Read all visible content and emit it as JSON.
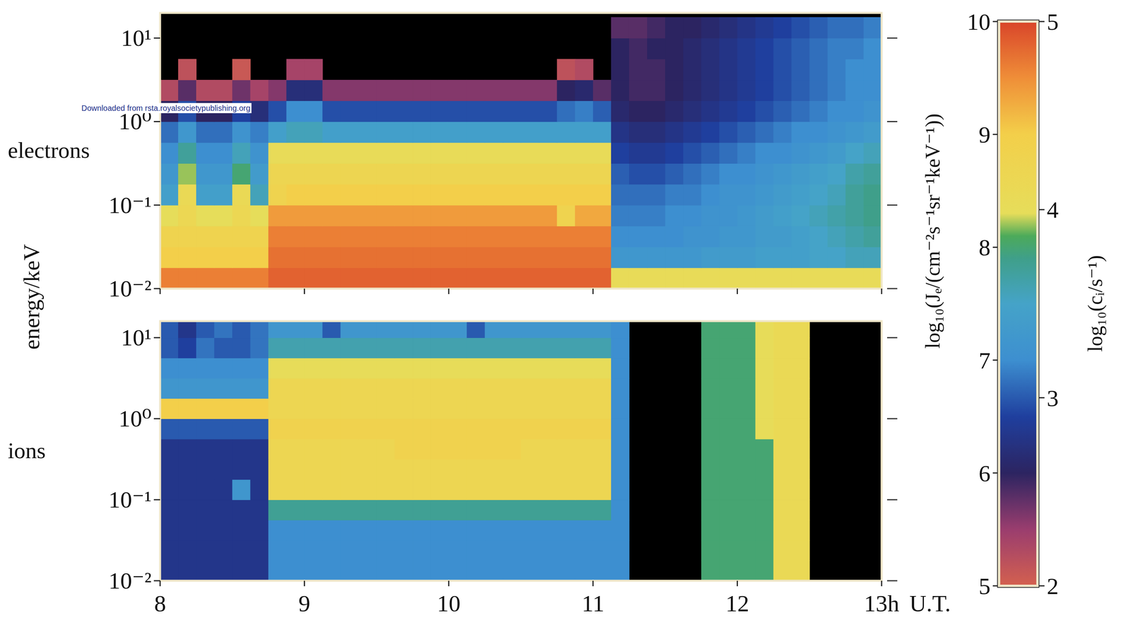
{
  "chart_data": [
    {
      "type": "heatmap",
      "title": "electrons",
      "ylabel": "energy/keV",
      "log": "y",
      "tick_labels": "y",
      "annotations": [
        "Downloaded from rsta.royalsocietypublishing.org"
      ],
      "xlim": [
        8,
        13
      ],
      "xticks": [
        8,
        9,
        10,
        11,
        12,
        {
          "value": 13,
          "label": "13h"
        }
      ],
      "ylim": [
        0.01,
        20
      ],
      "yticks": [
        {
          "value": 0.01,
          "label": "10⁻²"
        },
        {
          "value": 0.1,
          "label": "10⁻¹"
        },
        {
          "value": 1,
          "label": "10⁰"
        },
        {
          "value": 10,
          "label": "10¹"
        }
      ],
      "x": [
        8,
        8.125,
        8.25,
        8.375,
        8.5,
        8.625,
        8.75,
        8.875,
        9,
        9.125,
        9.25,
        9.375,
        9.5,
        9.625,
        9.75,
        9.875,
        10,
        10.125,
        10.25,
        10.375,
        10.5,
        10.625,
        10.75,
        10.875,
        11,
        11.125,
        11.25,
        11.375,
        11.5,
        11.625,
        11.75,
        11.875,
        12,
        12.125,
        12.25,
        12.375,
        12.5,
        12.625,
        12.75,
        12.875,
        13
      ],
      "y": [
        0.01,
        0.0178,
        0.0316,
        0.0562,
        0.1,
        0.178,
        0.316,
        0.562,
        1,
        1.78,
        3.16,
        5.62,
        10,
        17.8
      ],
      "zlim": [
        5,
        10
      ],
      "zticks": [
        5,
        6,
        7,
        8,
        9,
        10
      ],
      "zlabel": "log₁₀(Jₑ/(cm⁻²s⁻¹sr⁻¹keV⁻¹))",
      "z": [
        [
          9.6,
          9.6,
          9.6,
          9.6,
          9.6,
          9.6,
          9.8,
          9.8,
          9.8,
          9.8,
          9.8,
          9.8,
          9.8,
          9.8,
          9.8,
          9.8,
          9.8,
          9.8,
          9.8,
          9.8,
          9.8,
          9.8,
          9.8,
          9.8,
          9.8,
          8.4,
          8.4,
          8.4,
          8.4,
          8.4,
          8.4,
          8.4,
          8.4,
          8.4,
          8.4,
          8.4,
          8.4,
          8.4,
          8.4,
          8.4
        ],
        [
          9.0,
          9.0,
          9.0,
          9.0,
          9.0,
          9.0,
          9.7,
          9.7,
          9.7,
          9.7,
          9.7,
          9.7,
          9.7,
          9.7,
          9.7,
          9.7,
          9.7,
          9.7,
          9.7,
          9.7,
          9.7,
          9.7,
          9.7,
          9.7,
          9.7,
          7.2,
          7.2,
          7.2,
          7.2,
          7.2,
          7.3,
          7.3,
          7.3,
          7.4,
          7.4,
          7.4,
          7.5,
          7.5,
          7.6,
          7.6
        ],
        [
          8.8,
          8.8,
          8.8,
          8.8,
          8.8,
          8.8,
          9.6,
          9.6,
          9.6,
          9.6,
          9.6,
          9.6,
          9.6,
          9.6,
          9.6,
          9.6,
          9.6,
          9.6,
          9.6,
          9.6,
          9.6,
          9.6,
          9.6,
          9.6,
          9.6,
          7.0,
          7.0,
          7.0,
          7.0,
          7.1,
          7.1,
          7.2,
          7.2,
          7.3,
          7.3,
          7.4,
          7.5,
          7.6,
          7.7,
          7.8
        ],
        [
          8.3,
          8.6,
          8.3,
          8.3,
          8.6,
          8.3,
          9.4,
          9.4,
          9.4,
          9.4,
          9.4,
          9.4,
          9.4,
          9.4,
          9.4,
          9.4,
          9.4,
          9.4,
          9.4,
          9.4,
          9.4,
          9.4,
          8.8,
          9.3,
          9.3,
          6.9,
          6.9,
          6.9,
          7.0,
          7.0,
          7.1,
          7.1,
          7.2,
          7.3,
          7.4,
          7.5,
          7.6,
          7.7,
          7.8,
          7.9
        ],
        [
          7.4,
          8.5,
          7.4,
          7.4,
          8.5,
          7.6,
          8.8,
          9.0,
          9.0,
          9.0,
          9.0,
          9.0,
          9.0,
          9.0,
          9.0,
          9.0,
          9.0,
          9.0,
          9.0,
          9.0,
          9.0,
          9.0,
          9.0,
          9.0,
          9.0,
          6.8,
          6.8,
          6.8,
          6.9,
          6.9,
          7.0,
          7.1,
          7.1,
          7.2,
          7.3,
          7.4,
          7.5,
          7.6,
          7.8,
          7.9
        ],
        [
          7.2,
          8.2,
          7.2,
          7.2,
          8.0,
          7.3,
          8.7,
          8.7,
          8.7,
          8.7,
          8.7,
          8.7,
          8.7,
          8.7,
          8.7,
          8.7,
          8.7,
          8.7,
          8.7,
          8.7,
          8.7,
          8.7,
          8.7,
          8.7,
          8.7,
          6.7,
          6.6,
          6.6,
          6.7,
          6.8,
          6.9,
          7.0,
          7.0,
          7.1,
          7.2,
          7.3,
          7.4,
          7.5,
          7.7,
          7.8
        ],
        [
          7.0,
          7.8,
          7.0,
          7.0,
          7.6,
          7.1,
          8.4,
          8.4,
          8.4,
          8.4,
          8.4,
          8.4,
          8.4,
          8.4,
          8.4,
          8.4,
          8.4,
          8.4,
          8.4,
          8.4,
          8.4,
          8.4,
          8.4,
          8.4,
          8.4,
          6.5,
          6.4,
          6.4,
          6.5,
          6.6,
          6.7,
          6.8,
          6.9,
          7.0,
          7.0,
          7.1,
          7.2,
          7.3,
          7.5,
          7.6
        ],
        [
          6.8,
          7.2,
          6.8,
          6.8,
          7.1,
          6.9,
          7.4,
          7.6,
          7.6,
          7.4,
          7.4,
          7.4,
          7.4,
          7.4,
          7.4,
          7.4,
          7.4,
          7.4,
          7.4,
          7.4,
          7.4,
          7.4,
          7.4,
          7.4,
          7.4,
          6.3,
          6.2,
          6.2,
          6.3,
          6.4,
          6.5,
          6.6,
          6.7,
          6.8,
          6.9,
          7.0,
          7.0,
          7.1,
          7.2,
          7.3
        ],
        [
          6.0,
          6.6,
          6.0,
          6.0,
          6.5,
          6.2,
          6.6,
          7.0,
          7.0,
          6.6,
          6.6,
          6.6,
          6.6,
          6.6,
          6.6,
          6.6,
          6.6,
          6.6,
          6.6,
          6.6,
          6.6,
          6.6,
          6.8,
          6.9,
          6.7,
          6.1,
          6.0,
          6.0,
          6.1,
          6.2,
          6.3,
          6.4,
          6.5,
          6.6,
          6.7,
          6.8,
          6.9,
          7.0,
          7.0,
          7.1
        ],
        [
          5.3,
          5.8,
          5.3,
          5.3,
          5.7,
          5.4,
          5.6,
          6.2,
          6.2,
          5.6,
          5.6,
          5.6,
          5.6,
          5.6,
          5.6,
          5.6,
          5.6,
          5.6,
          5.6,
          5.6,
          5.6,
          5.6,
          6.0,
          6.1,
          5.8,
          6.0,
          5.9,
          5.9,
          6.0,
          6.1,
          6.2,
          6.3,
          6.4,
          6.5,
          6.6,
          6.7,
          6.8,
          6.9,
          7.0,
          7.0
        ],
        [
          null,
          5.2,
          null,
          null,
          5.1,
          null,
          null,
          5.4,
          5.4,
          null,
          null,
          null,
          null,
          null,
          null,
          null,
          null,
          null,
          null,
          null,
          null,
          null,
          5.2,
          5.3,
          null,
          6.0,
          5.9,
          5.9,
          6.0,
          6.1,
          6.2,
          6.3,
          6.4,
          6.5,
          6.6,
          6.7,
          6.8,
          6.9,
          7.0,
          7.0
        ],
        [
          null,
          null,
          null,
          null,
          null,
          null,
          null,
          null,
          null,
          null,
          null,
          null,
          null,
          null,
          null,
          null,
          null,
          null,
          null,
          null,
          null,
          null,
          null,
          null,
          null,
          6.0,
          5.9,
          6.0,
          6.0,
          6.1,
          6.2,
          6.3,
          6.4,
          6.5,
          6.6,
          6.7,
          6.8,
          6.9,
          6.9,
          7.0
        ],
        [
          null,
          null,
          null,
          null,
          null,
          null,
          null,
          null,
          null,
          null,
          null,
          null,
          null,
          null,
          null,
          null,
          null,
          null,
          null,
          null,
          null,
          null,
          null,
          null,
          null,
          5.8,
          5.8,
          5.9,
          6.0,
          6.0,
          6.1,
          6.2,
          6.3,
          6.4,
          6.5,
          6.6,
          6.7,
          6.8,
          6.8,
          6.9
        ]
      ]
    },
    {
      "type": "heatmap",
      "title": "ions",
      "xlabel": "U.T.",
      "log": "y",
      "tick_labels": true,
      "xlim": [
        8,
        13
      ],
      "xticks": [
        8,
        9,
        10,
        11,
        12,
        {
          "value": 13,
          "label": "13h"
        }
      ],
      "ylim": [
        0.01,
        16
      ],
      "yticks": [
        {
          "value": 0.01,
          "label": "10⁻²"
        },
        {
          "value": 0.1,
          "label": "10⁻¹"
        },
        {
          "value": 1,
          "label": "10⁰"
        },
        {
          "value": 10,
          "label": "10¹"
        }
      ],
      "x": [
        8,
        8.125,
        8.25,
        8.375,
        8.5,
        8.625,
        8.75,
        8.875,
        9,
        9.125,
        9.25,
        9.375,
        9.5,
        9.625,
        9.75,
        9.875,
        10,
        10.125,
        10.25,
        10.375,
        10.5,
        10.625,
        10.75,
        10.875,
        11,
        11.125,
        11.25,
        11.375,
        11.5,
        11.625,
        11.75,
        11.875,
        12,
        12.125,
        12.25,
        12.375,
        12.5,
        12.625,
        12.75,
        12.875,
        13
      ],
      "y": [
        0.01,
        0.0178,
        0.0316,
        0.0562,
        0.1,
        0.178,
        0.316,
        0.562,
        1,
        1.78,
        3.16,
        5.62,
        10,
        17.8
      ],
      "zlim": [
        2,
        5
      ],
      "zticks": [
        2,
        3,
        4,
        5
      ],
      "zlabel": "log₁₀(cᵢ/s⁻¹)",
      "z": [
        [
          2.8,
          2.8,
          2.8,
          2.8,
          2.8,
          2.8,
          3.2,
          3.2,
          3.2,
          3.2,
          3.2,
          3.2,
          3.2,
          3.2,
          3.2,
          3.2,
          3.2,
          3.2,
          3.2,
          3.2,
          3.2,
          3.2,
          3.2,
          3.2,
          3.2,
          3.2,
          null,
          null,
          null,
          null,
          3.8,
          3.8,
          3.8,
          3.8,
          4.1,
          4.1,
          null,
          null,
          null,
          null
        ],
        [
          2.8,
          2.8,
          2.8,
          2.8,
          2.8,
          2.8,
          3.2,
          3.2,
          3.2,
          3.2,
          3.2,
          3.2,
          3.2,
          3.2,
          3.2,
          3.2,
          3.2,
          3.2,
          3.2,
          3.2,
          3.2,
          3.2,
          3.2,
          3.2,
          3.2,
          3.2,
          null,
          null,
          null,
          null,
          3.8,
          3.8,
          3.8,
          3.8,
          4.1,
          4.1,
          null,
          null,
          null,
          null
        ],
        [
          2.8,
          2.8,
          2.8,
          2.8,
          2.8,
          2.8,
          3.2,
          3.2,
          3.2,
          3.2,
          3.2,
          3.2,
          3.2,
          3.2,
          3.2,
          3.2,
          3.2,
          3.2,
          3.2,
          3.2,
          3.2,
          3.2,
          3.2,
          3.2,
          3.2,
          3.2,
          null,
          null,
          null,
          null,
          3.8,
          3.8,
          3.8,
          3.8,
          4.1,
          4.1,
          null,
          null,
          null,
          null
        ],
        [
          2.8,
          2.8,
          2.8,
          2.8,
          2.8,
          2.8,
          3.7,
          3.7,
          3.7,
          3.7,
          3.7,
          3.7,
          3.7,
          3.7,
          3.7,
          3.7,
          3.7,
          3.7,
          3.7,
          3.7,
          3.7,
          3.7,
          3.7,
          3.7,
          3.7,
          3.2,
          null,
          null,
          null,
          null,
          3.8,
          3.8,
          3.8,
          3.8,
          4.1,
          4.1,
          null,
          null,
          null,
          null
        ],
        [
          2.8,
          2.8,
          2.8,
          2.8,
          3.3,
          2.8,
          4.2,
          4.2,
          4.2,
          4.2,
          4.2,
          4.2,
          4.2,
          4.2,
          4.2,
          4.2,
          4.2,
          4.2,
          4.2,
          4.2,
          4.2,
          4.2,
          4.2,
          4.2,
          4.2,
          3.2,
          null,
          null,
          null,
          null,
          3.8,
          3.8,
          3.8,
          3.8,
          4.1,
          4.1,
          null,
          null,
          null,
          null
        ],
        [
          2.8,
          2.8,
          2.8,
          2.8,
          2.8,
          2.8,
          4.2,
          4.2,
          4.2,
          4.2,
          4.2,
          4.2,
          4.2,
          4.2,
          4.2,
          4.2,
          4.2,
          4.2,
          4.2,
          4.2,
          4.2,
          4.2,
          4.2,
          4.2,
          4.2,
          3.2,
          null,
          null,
          null,
          null,
          3.8,
          3.8,
          3.8,
          3.8,
          4.1,
          4.1,
          null,
          null,
          null,
          null
        ],
        [
          2.8,
          2.8,
          2.8,
          2.8,
          2.8,
          2.8,
          4.2,
          4.2,
          4.2,
          4.2,
          4.2,
          4.2,
          4.2,
          4.3,
          4.3,
          4.3,
          4.3,
          4.3,
          4.3,
          4.3,
          4.2,
          4.2,
          4.2,
          4.2,
          4.2,
          3.2,
          null,
          null,
          null,
          null,
          3.8,
          3.8,
          3.8,
          3.8,
          4.1,
          4.1,
          null,
          null,
          null,
          null
        ],
        [
          3.0,
          3.0,
          3.0,
          3.0,
          3.0,
          3.0,
          4.3,
          4.3,
          4.3,
          4.3,
          4.3,
          4.3,
          4.3,
          4.3,
          4.3,
          4.3,
          4.3,
          4.3,
          4.3,
          4.3,
          4.3,
          4.3,
          4.3,
          4.3,
          4.3,
          3.2,
          null,
          null,
          null,
          null,
          3.8,
          3.8,
          3.8,
          4.0,
          4.1,
          4.1,
          null,
          null,
          null,
          null
        ],
        [
          4.4,
          4.4,
          4.4,
          4.4,
          4.4,
          4.4,
          4.2,
          4.2,
          4.2,
          4.2,
          4.2,
          4.2,
          4.2,
          4.2,
          4.2,
          4.2,
          4.2,
          4.2,
          4.2,
          4.2,
          4.2,
          4.2,
          4.2,
          4.2,
          4.2,
          3.2,
          null,
          null,
          null,
          null,
          3.8,
          3.8,
          3.8,
          4.0,
          4.1,
          4.1,
          null,
          null,
          null,
          null
        ],
        [
          3.3,
          3.3,
          3.3,
          3.3,
          3.3,
          3.3,
          4.2,
          4.2,
          4.2,
          4.2,
          4.2,
          4.2,
          4.2,
          4.2,
          4.2,
          4.2,
          4.2,
          4.2,
          4.2,
          4.2,
          4.2,
          4.2,
          4.2,
          4.2,
          4.2,
          3.2,
          null,
          null,
          null,
          null,
          3.8,
          3.8,
          3.8,
          4.0,
          4.1,
          4.1,
          null,
          null,
          null,
          null
        ],
        [
          3.2,
          3.2,
          3.2,
          3.2,
          3.2,
          3.2,
          4.0,
          4.0,
          4.0,
          4.0,
          4.0,
          4.0,
          4.0,
          4.0,
          4.0,
          4.0,
          4.0,
          4.0,
          4.0,
          4.0,
          4.0,
          4.0,
          4.0,
          4.0,
          4.0,
          3.2,
          null,
          null,
          null,
          null,
          3.8,
          3.8,
          3.8,
          4.0,
          4.1,
          4.1,
          null,
          null,
          null,
          null
        ],
        [
          3.0,
          2.9,
          3.1,
          3.0,
          3.0,
          3.1,
          3.6,
          3.6,
          3.6,
          3.6,
          3.6,
          3.6,
          3.6,
          3.6,
          3.6,
          3.6,
          3.6,
          3.6,
          3.6,
          3.6,
          3.6,
          3.6,
          3.6,
          3.6,
          3.6,
          3.2,
          null,
          null,
          null,
          null,
          3.8,
          3.8,
          3.8,
          4.0,
          4.1,
          4.1,
          null,
          null,
          null,
          null
        ],
        [
          3.0,
          2.8,
          3.0,
          3.1,
          3.0,
          3.1,
          3.3,
          3.3,
          3.3,
          3.0,
          3.3,
          3.3,
          3.3,
          3.3,
          3.3,
          3.3,
          3.3,
          3.0,
          3.3,
          3.3,
          3.3,
          3.3,
          3.3,
          3.3,
          3.3,
          3.2,
          null,
          null,
          null,
          null,
          3.8,
          3.8,
          3.8,
          4.0,
          4.1,
          4.1,
          null,
          null,
          null,
          null
        ]
      ]
    }
  ]
}
